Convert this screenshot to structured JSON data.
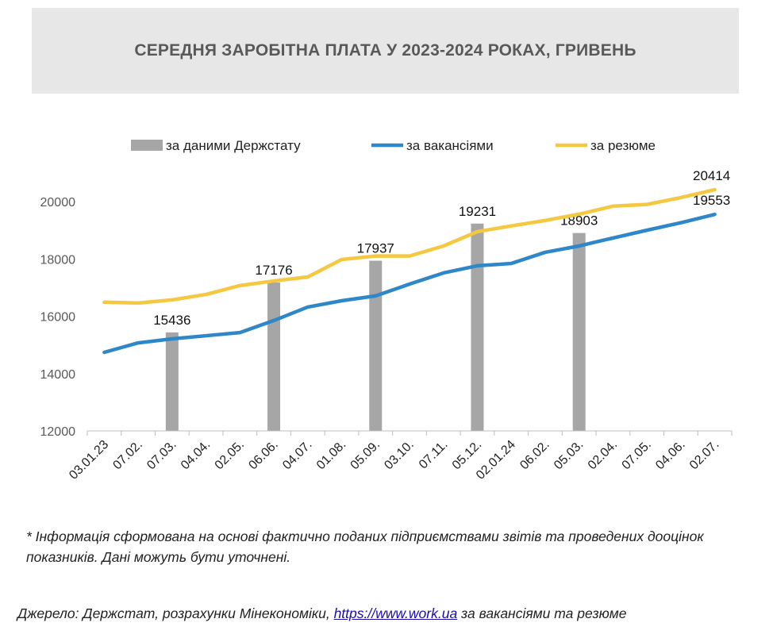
{
  "chart_data": {
    "type": "bar+line",
    "title": "СЕРЕДНЯ ЗАРОБІТНА ПЛАТА У 2023-2024 РОКАХ, ГРИВЕНЬ",
    "xlabel": "",
    "ylabel": "",
    "ylim": [
      12000,
      20000
    ],
    "yticks": [
      12000,
      14000,
      16000,
      18000,
      20000
    ],
    "grid": false,
    "legend_position": "top",
    "categories": [
      "03.01.23",
      "07.02.",
      "07.03.",
      "04.04.",
      "02.05.",
      "06.06.",
      "04.07.",
      "01.08.",
      "05.09.",
      "03.10.",
      "07.11.",
      "05.12.",
      "02.01.24",
      "06.02.",
      "05.03.",
      "02.04.",
      "07.05.",
      "04.06.",
      "02.07."
    ],
    "series": [
      {
        "name": "за даними Держстату",
        "type": "bar",
        "color": "#a6a6a6",
        "values": [
          null,
          null,
          15436,
          null,
          null,
          17176,
          null,
          null,
          17937,
          null,
          null,
          19231,
          null,
          null,
          18903,
          null,
          null,
          null,
          null
        ]
      },
      {
        "name": "за вакансіями",
        "type": "line",
        "color": "#2e87c8",
        "values": [
          14740,
          15070,
          15210,
          15320,
          15430,
          15850,
          16320,
          16540,
          16710,
          17120,
          17510,
          17760,
          17840,
          18230,
          18450,
          18730,
          19000,
          19260,
          19553
        ],
        "labels": {
          "18": "19553"
        }
      },
      {
        "name": "за резюме",
        "type": "line",
        "color": "#f5c842",
        "values": [
          16490,
          16460,
          16570,
          16760,
          17070,
          17230,
          17370,
          17980,
          18100,
          18100,
          18450,
          18950,
          19150,
          19340,
          19560,
          19840,
          19900,
          20140,
          20414
        ],
        "labels": {
          "18": "20414"
        }
      }
    ]
  },
  "footnote": "* Інформація сформована на основі фактично поданих підприємствами звітів та проведених дооцінок показників. Дані можуть бути уточнені.",
  "source": {
    "prefix": "Джерело: Держстат, розрахунки Мінекономіки, ",
    "link": "https://www.work.ua",
    "suffix": " за вакансіями та резюме"
  }
}
